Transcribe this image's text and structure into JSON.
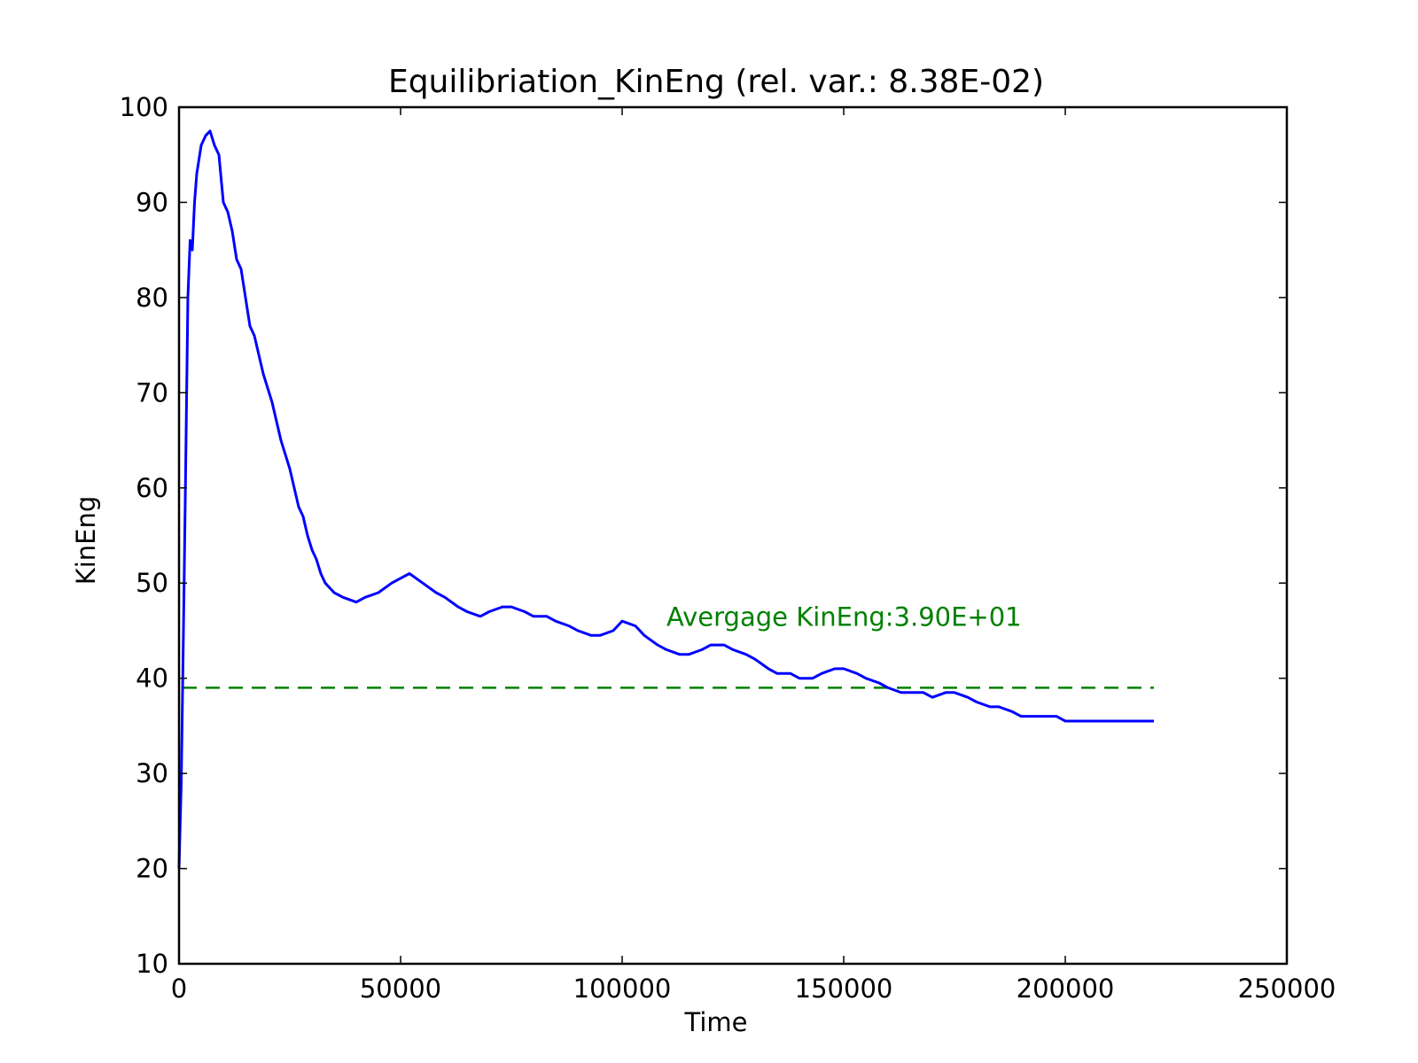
{
  "chart_data": {
    "type": "line",
    "title": "Equilibriation_KinEng (rel. var.: 8.38E-02)",
    "xlabel": "Time",
    "ylabel": "KinEng",
    "xlim": [
      0,
      250000
    ],
    "ylim": [
      10,
      100
    ],
    "xticks": [
      0,
      50000,
      100000,
      150000,
      200000,
      250000
    ],
    "yticks": [
      10,
      20,
      30,
      40,
      50,
      60,
      70,
      80,
      90,
      100
    ],
    "grid": false,
    "series": [
      {
        "color": "#0000ff",
        "x": [
          0,
          500,
          1000,
          1500,
          2000,
          2500,
          3000,
          3500,
          4000,
          5000,
          6000,
          7000,
          8000,
          9000,
          10000,
          11000,
          12000,
          13000,
          14000,
          15000,
          16000,
          17000,
          18000,
          19000,
          20000,
          21000,
          22000,
          23000,
          24000,
          25000,
          26000,
          27000,
          28000,
          29000,
          30000,
          31000,
          32000,
          33000,
          34000,
          35000,
          37000,
          40000,
          42000,
          45000,
          48000,
          50000,
          52000,
          55000,
          58000,
          60000,
          63000,
          65000,
          68000,
          70000,
          73000,
          75000,
          78000,
          80000,
          83000,
          85000,
          88000,
          90000,
          93000,
          95000,
          98000,
          100000,
          103000,
          105000,
          108000,
          110000,
          113000,
          115000,
          118000,
          120000,
          123000,
          125000,
          128000,
          130000,
          133000,
          135000,
          138000,
          140000,
          143000,
          145000,
          148000,
          150000,
          153000,
          155000,
          158000,
          160000,
          163000,
          165000,
          168000,
          170000,
          173000,
          175000,
          178000,
          180000,
          183000,
          185000,
          188000,
          190000,
          193000,
          195000,
          198000,
          200000,
          203000,
          205000,
          208000,
          210000,
          213000,
          215000,
          218000,
          220000
        ],
        "y": [
          20,
          29,
          45,
          62,
          80,
          86,
          85,
          90,
          93,
          96,
          97,
          97.5,
          96,
          95,
          90,
          89,
          87,
          84,
          83,
          80,
          77,
          76,
          74,
          72,
          70.5,
          69,
          67,
          65,
          63.5,
          62,
          60,
          58,
          57,
          55,
          53.5,
          52.5,
          51,
          50,
          49.5,
          49,
          48.5,
          48,
          48.5,
          49,
          50,
          50.5,
          51,
          50,
          49,
          48.5,
          47.5,
          47,
          46.5,
          47,
          47.5,
          47.5,
          47,
          46.5,
          46.5,
          46,
          45.5,
          45,
          44.5,
          44.5,
          45,
          46,
          45.5,
          44.5,
          43.5,
          43,
          42.5,
          42.5,
          43,
          43.5,
          43.5,
          43,
          42.5,
          42,
          41,
          40.5,
          40.5,
          40,
          40,
          40.5,
          41,
          41,
          40.5,
          40,
          39.5,
          39,
          38.5,
          38.5,
          38.5,
          38,
          38.5,
          38.5,
          38,
          37.5,
          37,
          37,
          36.5,
          36,
          36,
          36,
          36,
          35.5,
          35.5,
          35.5,
          35.5,
          35.5,
          35.5,
          35.5,
          35.5,
          35.5
        ]
      }
    ],
    "reference_line": {
      "y": 39.0,
      "x": [
        0,
        220000
      ],
      "color": "#008000",
      "style": "dashed"
    },
    "annotation": {
      "text": "Avergage KinEng:3.90E+01",
      "x": 110000,
      "y": 45.5,
      "color": "#008000"
    }
  }
}
